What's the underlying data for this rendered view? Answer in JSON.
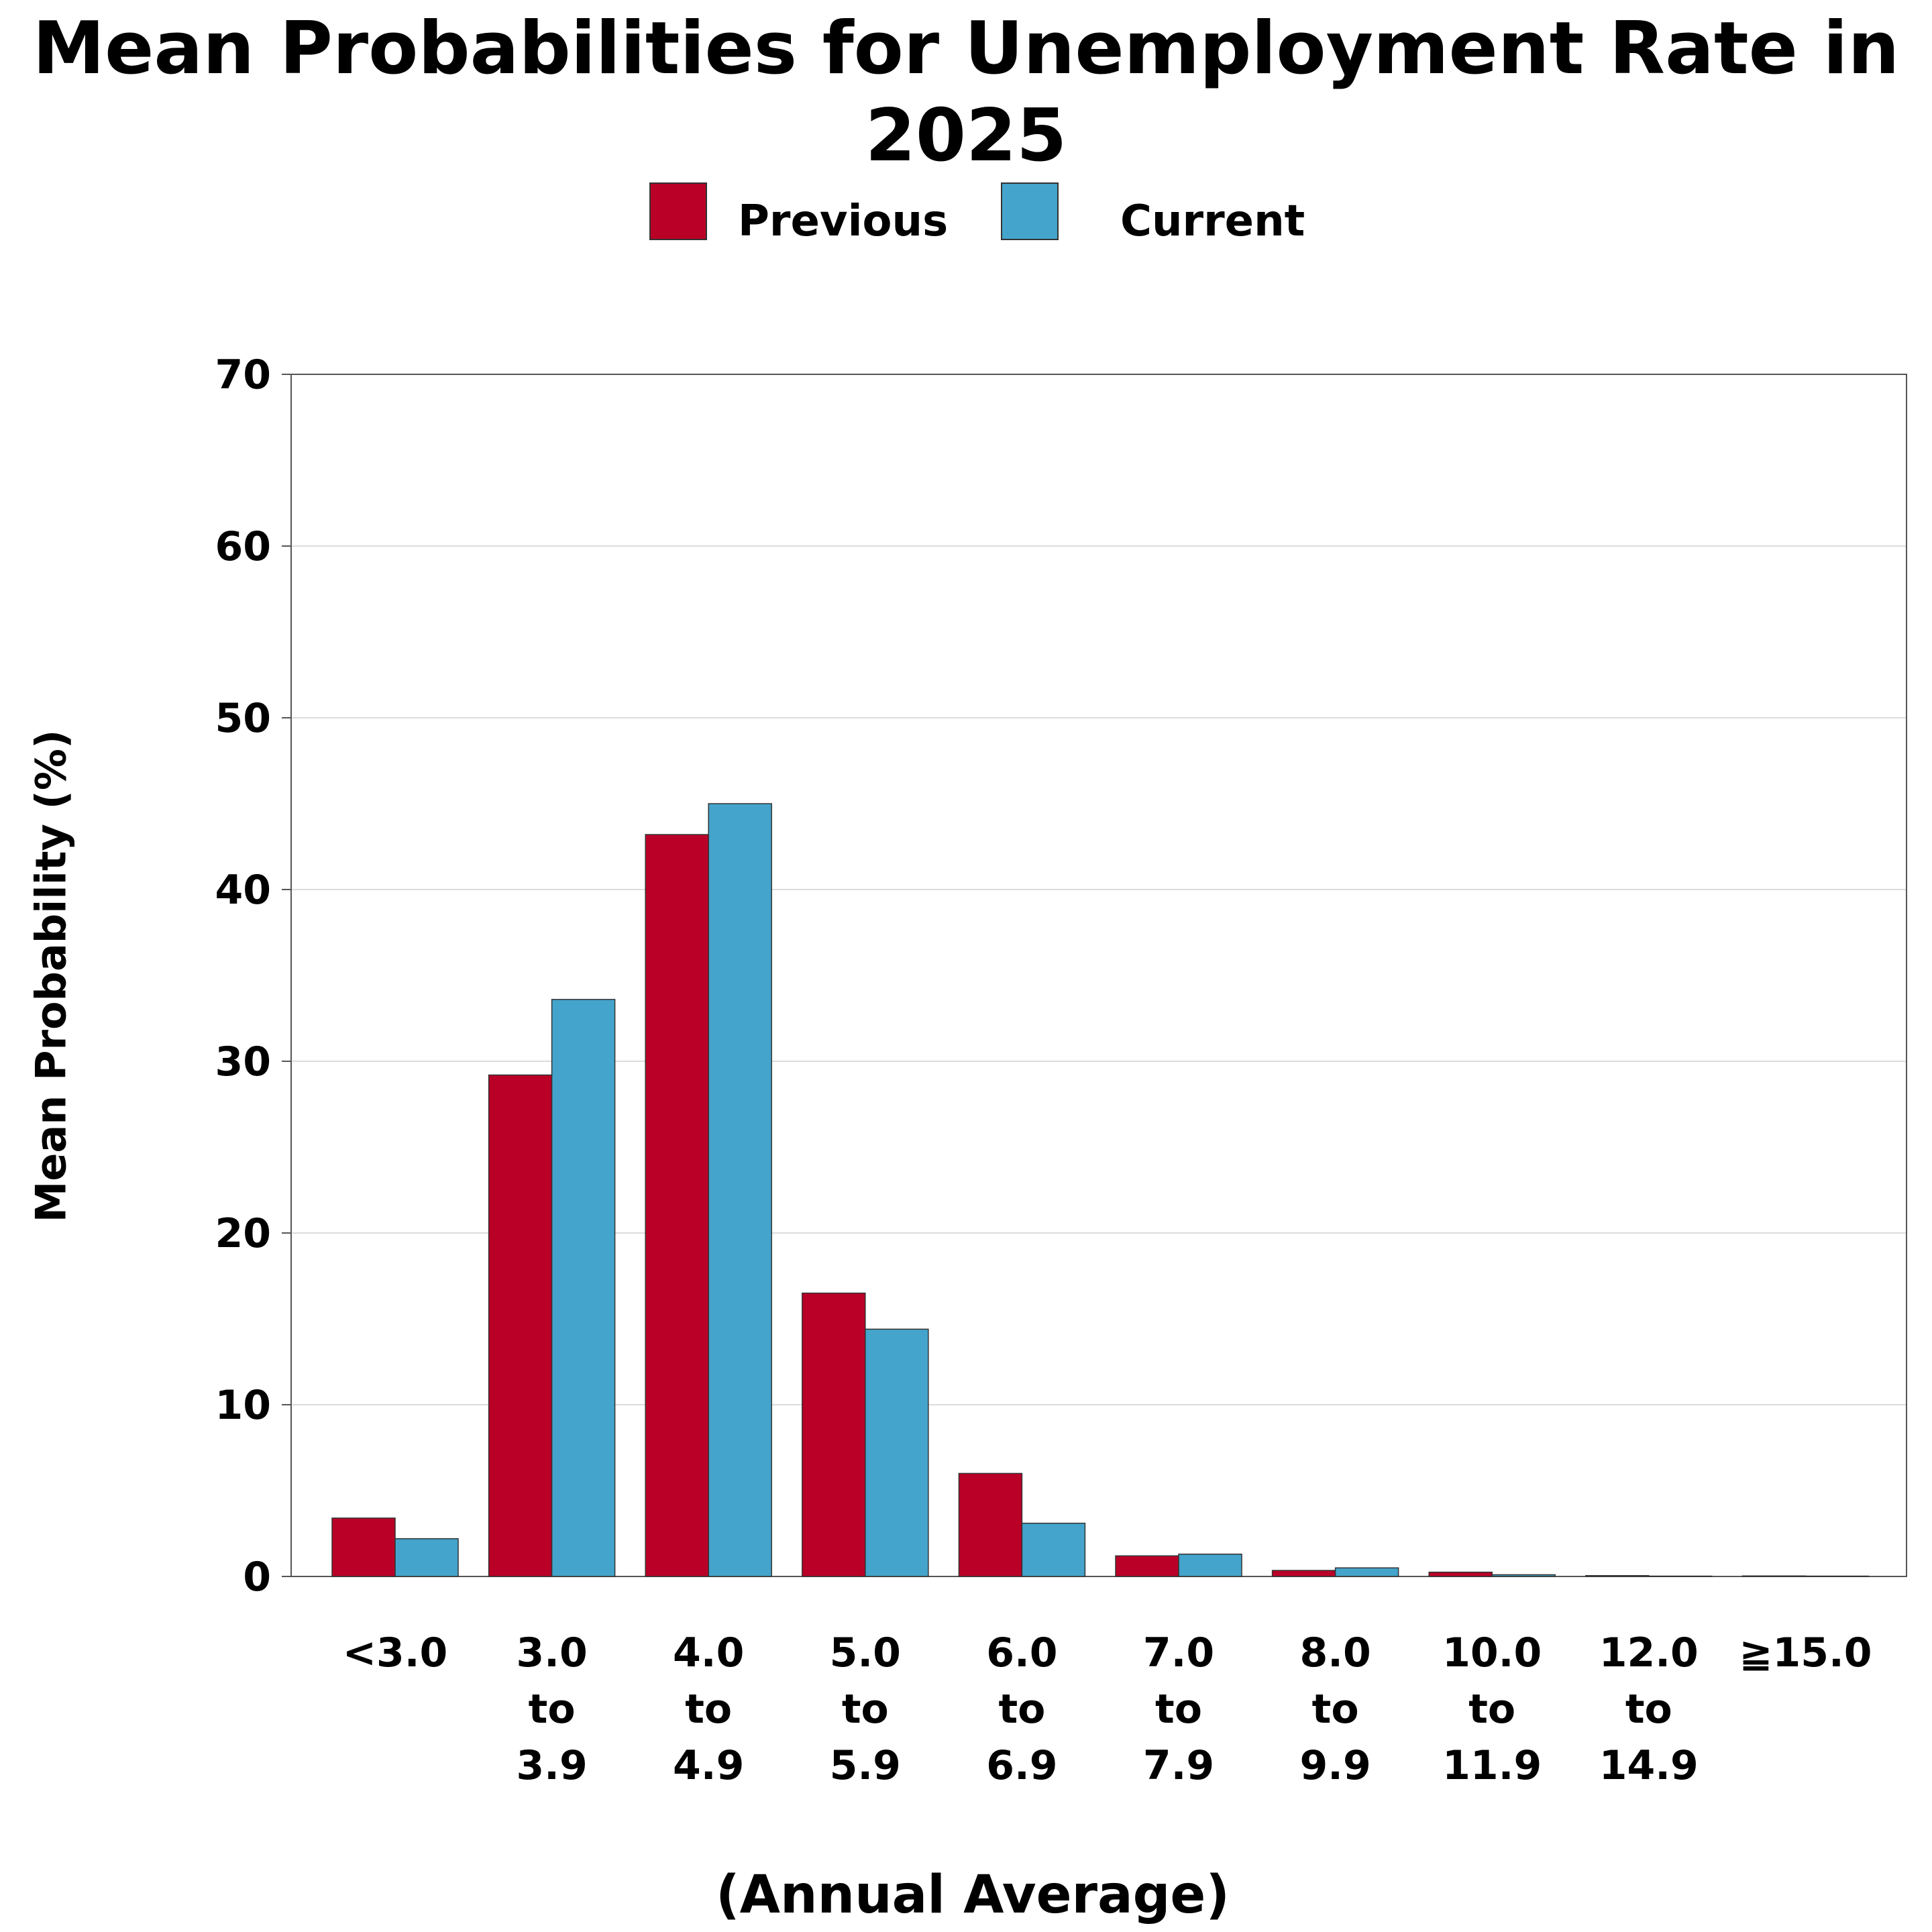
{
  "chart_data": {
    "type": "bar",
    "title": "Mean Probabilities for Unemployment Rate in 2025",
    "xlabel": "(Annual Average)",
    "ylabel": "Mean Probability (%)",
    "ylim": [
      0,
      70
    ],
    "yticks": [
      "0",
      "10",
      "20",
      "30",
      "40",
      "50",
      "60",
      "70"
    ],
    "grid": true,
    "legend_position": "top-center",
    "categories": [
      [
        "<3.0"
      ],
      [
        "3.0",
        "to",
        "3.9"
      ],
      [
        "4.0",
        "to",
        "4.9"
      ],
      [
        "5.0",
        "to",
        "5.9"
      ],
      [
        "6.0",
        "to",
        "6.9"
      ],
      [
        "7.0",
        "to",
        "7.9"
      ],
      [
        "8.0",
        "to",
        "9.9"
      ],
      [
        "10.0",
        "to",
        "11.9"
      ],
      [
        "12.0",
        "to",
        "14.9"
      ],
      [
        "≧15.0"
      ]
    ],
    "series": [
      {
        "name": "Previous",
        "color": "#BA0027",
        "values": [
          3.4,
          29.2,
          43.2,
          16.5,
          6.0,
          1.2,
          0.35,
          0.25,
          0.05,
          0.03
        ]
      },
      {
        "name": "Current",
        "color": "#44A4CB",
        "values": [
          2.2,
          33.6,
          45.0,
          14.4,
          3.1,
          1.3,
          0.5,
          0.1,
          0.02,
          0.02
        ]
      }
    ]
  }
}
